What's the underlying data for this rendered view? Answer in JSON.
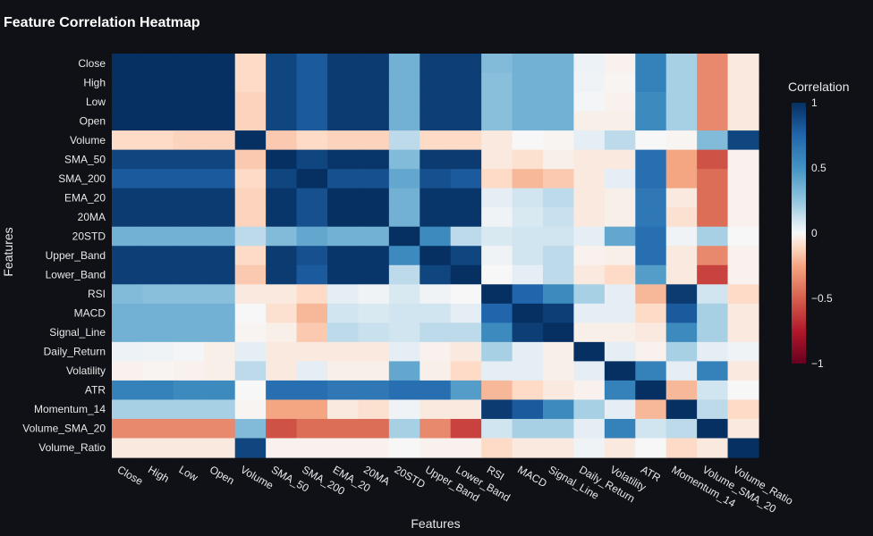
{
  "chart_data": {
    "type": "heatmap",
    "title": "Feature Correlation Heatmap",
    "xlabel": "Features",
    "ylabel": "Features",
    "colorbar": {
      "title": "Correlation",
      "ticks": [
        "1",
        "0.5",
        "0",
        "−0.5",
        "−1"
      ],
      "range": [
        -1,
        1
      ]
    },
    "colorscale": "RdBu",
    "features": [
      "Close",
      "High",
      "Low",
      "Open",
      "Volume",
      "SMA_50",
      "SMA_200",
      "EMA_20",
      "20MA",
      "20STD",
      "Upper_Band",
      "Lower_Band",
      "RSI",
      "MACD",
      "Signal_Line",
      "Daily_Return",
      "Volatility",
      "ATR",
      "Momentum_14",
      "Volume_SMA_20",
      "Volume_Ratio"
    ],
    "matrix": [
      [
        1.0,
        1.0,
        1.0,
        1.0,
        -0.1,
        0.9,
        0.8,
        0.95,
        0.95,
        0.35,
        0.93,
        0.93,
        0.3,
        0.35,
        0.35,
        0.03,
        -0.02,
        0.6,
        0.2,
        -0.35,
        -0.05
      ],
      [
        1.0,
        1.0,
        1.0,
        1.0,
        -0.1,
        0.9,
        0.8,
        0.95,
        0.95,
        0.35,
        0.93,
        0.93,
        0.28,
        0.35,
        0.35,
        0.02,
        -0.01,
        0.6,
        0.2,
        -0.35,
        -0.05
      ],
      [
        1.0,
        1.0,
        1.0,
        1.0,
        -0.12,
        0.9,
        0.8,
        0.95,
        0.95,
        0.35,
        0.93,
        0.93,
        0.28,
        0.35,
        0.35,
        0.01,
        -0.02,
        0.55,
        0.2,
        -0.35,
        -0.05
      ],
      [
        1.0,
        1.0,
        1.0,
        1.0,
        -0.12,
        0.9,
        0.8,
        0.95,
        0.95,
        0.35,
        0.93,
        0.93,
        0.28,
        0.35,
        0.35,
        -0.03,
        -0.03,
        0.55,
        0.2,
        -0.35,
        -0.05
      ],
      [
        -0.1,
        -0.1,
        -0.12,
        -0.12,
        1.0,
        -0.15,
        -0.1,
        -0.12,
        -0.12,
        0.15,
        -0.1,
        -0.1,
        -0.05,
        0.0,
        -0.01,
        0.05,
        0.15,
        0.0,
        -0.01,
        0.3,
        0.9
      ],
      [
        0.9,
        0.9,
        0.9,
        0.9,
        -0.15,
        1.0,
        0.9,
        0.97,
        0.97,
        0.3,
        0.95,
        0.95,
        -0.05,
        -0.08,
        -0.03,
        -0.05,
        -0.05,
        0.7,
        -0.25,
        -0.55,
        -0.02
      ],
      [
        0.8,
        0.8,
        0.8,
        0.8,
        -0.1,
        0.9,
        1.0,
        0.85,
        0.85,
        0.4,
        0.85,
        0.8,
        -0.1,
        -0.2,
        -0.15,
        -0.05,
        0.05,
        0.7,
        -0.25,
        -0.45,
        -0.02
      ],
      [
        0.95,
        0.95,
        0.95,
        0.95,
        -0.12,
        0.97,
        0.85,
        1.0,
        1.0,
        0.35,
        0.97,
        0.97,
        0.05,
        0.1,
        0.15,
        -0.05,
        -0.03,
        0.65,
        -0.05,
        -0.45,
        -0.02
      ],
      [
        0.95,
        0.95,
        0.95,
        0.95,
        -0.12,
        0.97,
        0.85,
        1.0,
        1.0,
        0.35,
        0.97,
        0.97,
        0.02,
        0.08,
        0.12,
        -0.05,
        -0.03,
        0.65,
        -0.08,
        -0.45,
        -0.02
      ],
      [
        0.35,
        0.35,
        0.35,
        0.35,
        0.15,
        0.3,
        0.4,
        0.35,
        0.35,
        1.0,
        0.55,
        0.15,
        0.08,
        0.1,
        0.1,
        0.05,
        0.4,
        0.7,
        0.02,
        0.2,
        0.0
      ],
      [
        0.93,
        0.93,
        0.93,
        0.93,
        -0.1,
        0.95,
        0.85,
        0.97,
        0.97,
        0.55,
        1.0,
        0.9,
        0.02,
        0.1,
        0.15,
        -0.02,
        -0.03,
        0.7,
        -0.05,
        -0.35,
        -0.02
      ],
      [
        0.93,
        0.93,
        0.93,
        0.93,
        -0.15,
        0.95,
        0.8,
        0.97,
        0.97,
        0.15,
        0.9,
        1.0,
        0.0,
        0.05,
        0.15,
        -0.05,
        -0.1,
        0.45,
        -0.05,
        -0.6,
        -0.02
      ],
      [
        0.3,
        0.28,
        0.28,
        0.28,
        -0.05,
        -0.05,
        -0.1,
        0.05,
        0.02,
        0.08,
        0.02,
        0.0,
        1.0,
        0.75,
        0.55,
        0.2,
        0.05,
        -0.2,
        0.95,
        0.1,
        -0.1
      ],
      [
        0.35,
        0.35,
        0.35,
        0.35,
        0.0,
        -0.08,
        -0.2,
        0.1,
        0.08,
        0.1,
        0.1,
        0.05,
        0.75,
        1.0,
        0.93,
        0.05,
        0.05,
        -0.1,
        0.8,
        0.2,
        -0.05
      ],
      [
        0.35,
        0.35,
        0.35,
        0.35,
        -0.01,
        -0.03,
        -0.15,
        0.15,
        0.12,
        0.1,
        0.15,
        0.15,
        0.55,
        0.93,
        1.0,
        -0.03,
        -0.03,
        -0.05,
        0.55,
        0.2,
        -0.05
      ],
      [
        0.03,
        0.02,
        0.01,
        -0.03,
        0.05,
        -0.05,
        -0.05,
        -0.05,
        -0.05,
        0.05,
        -0.02,
        -0.05,
        0.2,
        0.05,
        -0.03,
        1.0,
        0.05,
        -0.02,
        0.2,
        0.05,
        0.02
      ],
      [
        -0.02,
        -0.01,
        -0.02,
        -0.03,
        0.15,
        -0.05,
        0.05,
        -0.03,
        -0.03,
        0.4,
        -0.03,
        -0.1,
        0.05,
        0.05,
        -0.03,
        0.05,
        1.0,
        0.6,
        0.05,
        0.6,
        -0.05
      ],
      [
        0.6,
        0.6,
        0.55,
        0.55,
        0.0,
        0.7,
        0.7,
        0.65,
        0.65,
        0.7,
        0.7,
        0.45,
        -0.2,
        -0.1,
        -0.05,
        -0.02,
        0.6,
        1.0,
        -0.2,
        0.1,
        0.0
      ],
      [
        0.2,
        0.2,
        0.2,
        0.2,
        -0.01,
        -0.25,
        -0.25,
        -0.05,
        -0.08,
        0.02,
        -0.05,
        -0.05,
        0.95,
        0.8,
        0.55,
        0.2,
        0.05,
        -0.2,
        1.0,
        0.15,
        -0.1
      ],
      [
        -0.35,
        -0.35,
        -0.35,
        -0.35,
        0.3,
        -0.55,
        -0.45,
        -0.45,
        -0.45,
        0.2,
        -0.35,
        -0.6,
        0.1,
        0.2,
        0.2,
        0.05,
        0.6,
        0.1,
        0.15,
        1.0,
        -0.05
      ],
      [
        -0.05,
        -0.05,
        -0.05,
        -0.05,
        0.9,
        -0.02,
        -0.02,
        -0.02,
        -0.02,
        0.0,
        -0.02,
        -0.02,
        -0.1,
        -0.05,
        -0.05,
        0.02,
        -0.05,
        0.0,
        -0.1,
        -0.05,
        1.0
      ]
    ]
  }
}
